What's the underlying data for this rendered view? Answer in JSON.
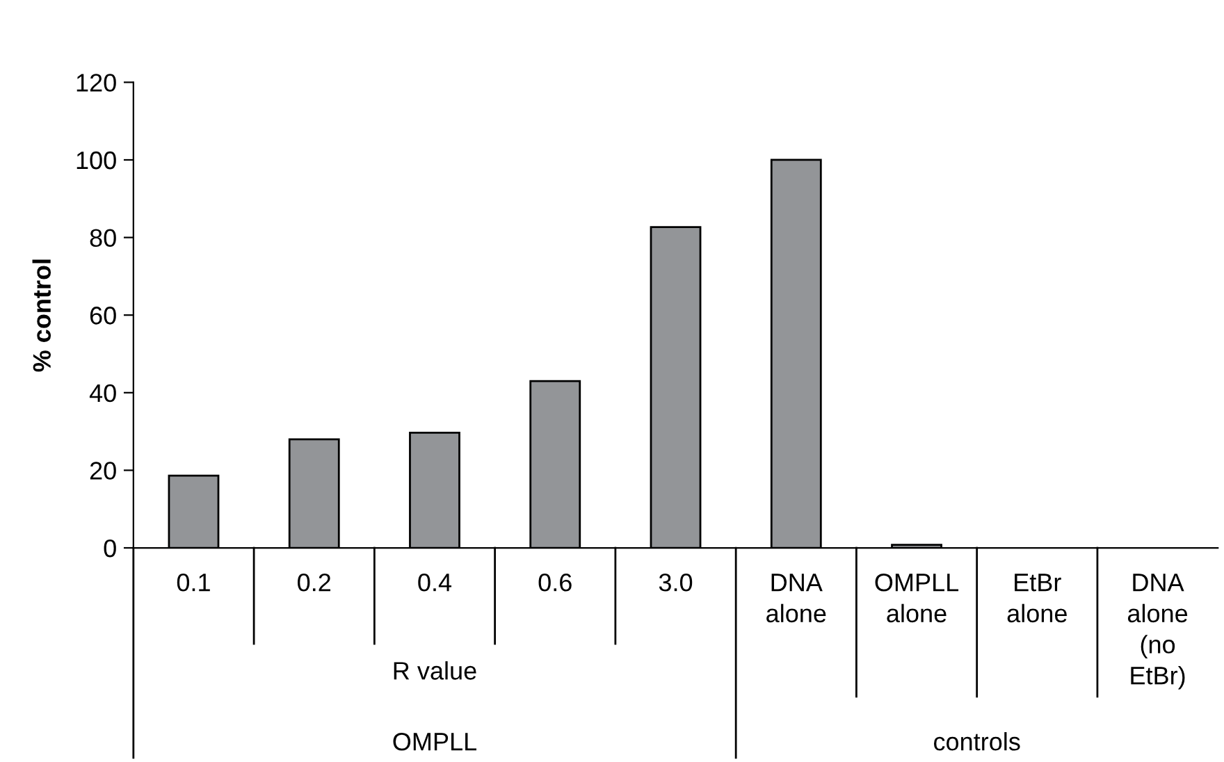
{
  "chart_data": {
    "type": "bar",
    "ylabel": "% control",
    "categories": [
      "0.1",
      "0.2",
      "0.4",
      "0.6",
      "3.0",
      "DNA\nalone",
      "OMPLL\nalone",
      "EtBr\nalone",
      "DNA\nalone\n(no\nEtBr)"
    ],
    "values": [
      18.6,
      28,
      29.7,
      43,
      82.7,
      100,
      0.8,
      0,
      0
    ],
    "color": "#939598",
    "ylim": [
      0,
      120
    ],
    "yticks": [
      0,
      20,
      40,
      60,
      80,
      100,
      120
    ],
    "grid": false,
    "annotations": [
      "R value",
      "OMPLL",
      "controls"
    ]
  }
}
